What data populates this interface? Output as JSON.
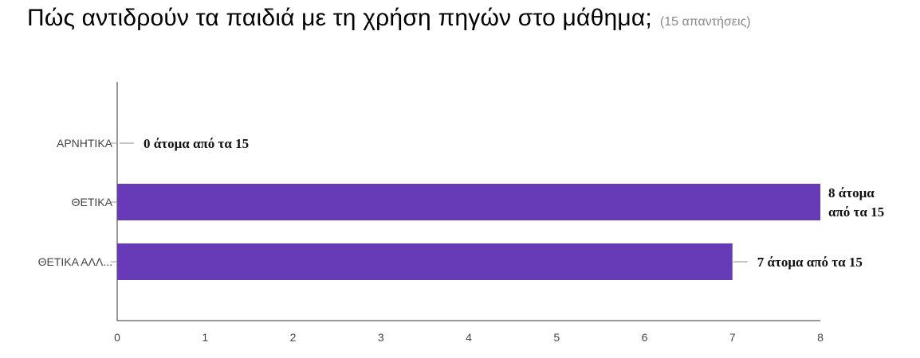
{
  "header": {
    "title": "Πώς αντιδρούν τα παιδιά με τη χρήση πηγών στο μάθημα;",
    "responses": "(15 απαντήσεις)"
  },
  "chart_data": {
    "type": "bar",
    "orientation": "horizontal",
    "categories": [
      "ΑΡΝΗΤΙΚΑ",
      "ΘΕΤΙΚΑ",
      "ΘΕΤΙΚΑ ΑΛΛ..."
    ],
    "values": [
      0,
      8,
      7
    ],
    "annotations": [
      [
        "0 άτομα από τα 15"
      ],
      [
        "8 άτομα",
        "από τα 15"
      ],
      [
        "7 άτομα από τα 15"
      ]
    ],
    "xlim": [
      0,
      8
    ],
    "xticks": [
      "0",
      "1",
      "2",
      "3",
      "4",
      "5",
      "6",
      "7",
      "8"
    ],
    "bar_color": "#673ab7",
    "grid": false
  }
}
